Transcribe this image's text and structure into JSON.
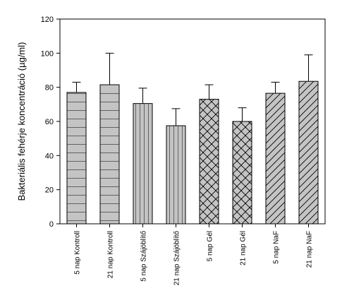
{
  "chart_data": {
    "type": "bar",
    "title": "",
    "xlabel": "",
    "ylabel": "Bakteriális fehérje koncentráció (µg/ml)",
    "ylim": [
      0,
      120
    ],
    "yticks": [
      0,
      20,
      40,
      60,
      80,
      100,
      120
    ],
    "categories": [
      "5 nap Kontroll",
      "21 nap Kontroll",
      "5 nap Szájöblítő",
      "21 nap Szájöblítő",
      "5 nap Gél",
      "21 nap Gél",
      "5 nap NaF",
      "21 nap NaF"
    ],
    "values": [
      77,
      81.5,
      70.5,
      57.5,
      73,
      60,
      76.5,
      83.5
    ],
    "error_upper": [
      6,
      18.5,
      9,
      10,
      8.5,
      8,
      6.5,
      15.5
    ],
    "patterns": [
      "horizontal",
      "horizontal",
      "vertical",
      "vertical",
      "crosshatch",
      "crosshatch",
      "diagonal",
      "diagonal"
    ],
    "bar_color": "#c4c4c4",
    "stroke_color": "#000000",
    "grid": false,
    "legend": "none"
  }
}
